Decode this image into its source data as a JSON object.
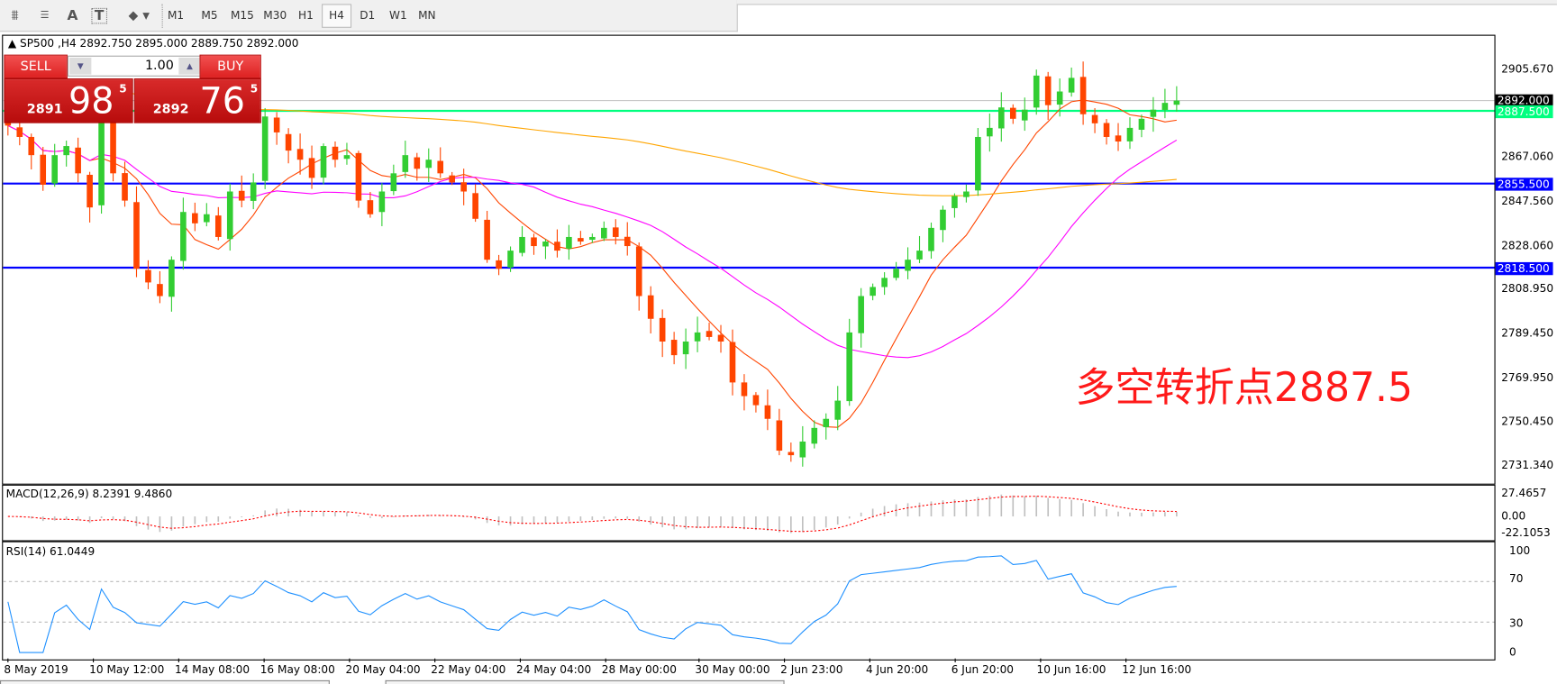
{
  "toolbar": {
    "icons": [
      "elliott-wave-icon",
      "fibonacci-icon",
      "text-icon",
      "text-label-icon",
      "arrows-icon"
    ],
    "text_icon_glyph": "A",
    "label_icon_glyph": "T",
    "timeframes": [
      "M1",
      "M5",
      "M15",
      "M30",
      "H1",
      "H4",
      "D1",
      "W1",
      "MN"
    ],
    "active_timeframe": "H4"
  },
  "chart": {
    "symbol_line": "SP500 ,H4  2892.750 2895.000 2889.750 2892.000",
    "trade_panel": {
      "sell_label": "SELL",
      "buy_label": "BUY",
      "lot_value": "1.00",
      "sell_price_small": "2891",
      "sell_price_big": "98",
      "sell_price_sup": "5",
      "buy_price_small": "2892",
      "buy_price_big": "76",
      "buy_price_sup": "5"
    },
    "annotation": "多空转折点2887.5",
    "annotation_color": "#ff1a1a",
    "price_axis": [
      "2905.670",
      "2867.060",
      "2847.560",
      "2828.060",
      "2808.950",
      "2789.450",
      "2769.950",
      "2750.450",
      "2731.340"
    ],
    "price_axis_values": [
      2905.67,
      2867.06,
      2847.56,
      2828.06,
      2808.95,
      2789.45,
      2769.95,
      2750.45,
      2731.34
    ],
    "levels": [
      {
        "label": "2892.000",
        "value": 2892.0,
        "color": "#c0c0c0",
        "tag_color": "#000000"
      },
      {
        "label": "2887.500",
        "value": 2887.5,
        "color": "#00ff7f",
        "tag_color": "#00ff7f"
      },
      {
        "label": "2855.500",
        "value": 2855.5,
        "color": "#0000ff",
        "tag_color": "#0000ff"
      },
      {
        "label": "2818.500",
        "value": 2818.5,
        "color": "#0000ff",
        "tag_color": "#0000ff"
      }
    ],
    "bull_color": "#32cd32",
    "bear_color": "#ff4500",
    "ma_colors": [
      "#ff4500",
      "#ff00ff",
      "#ffa500"
    ],
    "closes": [
      2881,
      2876,
      2868,
      2855,
      2868,
      2872,
      2860,
      2845,
      2890,
      2860,
      2848,
      2818,
      2812,
      2806,
      2822,
      2843,
      2838,
      2842,
      2832,
      2852,
      2848,
      2856,
      2885,
      2878,
      2870,
      2866,
      2858,
      2872,
      2866,
      2868,
      2848,
      2842,
      2852,
      2860,
      2868,
      2862,
      2866,
      2860,
      2856,
      2852,
      2840,
      2822,
      2818,
      2826,
      2832,
      2828,
      2830,
      2826,
      2832,
      2830,
      2832,
      2836,
      2832,
      2828,
      2806,
      2796,
      2786,
      2780,
      2786,
      2790,
      2788,
      2786,
      2768,
      2762,
      2758,
      2752,
      2738,
      2736,
      2742,
      2748,
      2752,
      2760,
      2790,
      2806,
      2810,
      2814,
      2818,
      2822,
      2826,
      2836,
      2844,
      2850,
      2852,
      2876,
      2880,
      2889,
      2884,
      2888,
      2903,
      2890,
      2896,
      2902,
      2886,
      2882,
      2876,
      2874,
      2880,
      2884,
      2888,
      2891,
      2892
    ]
  },
  "macd": {
    "title": "MACD(12,26,9) 8.2391 9.4860",
    "axis": [
      "27.4657",
      "0.00",
      "-22.1053"
    ],
    "histogram_color": "#c0c0c0",
    "signal_color": "#ff0000"
  },
  "rsi": {
    "title": "RSI(14) 61.0449",
    "axis": [
      "100",
      "70",
      "30",
      "0"
    ],
    "line_color": "#1e90ff"
  },
  "time_axis": [
    "8 May 2019",
    "10 May 12:00",
    "14 May 08:00",
    "16 May 08:00",
    "20 May 04:00",
    "22 May 04:00",
    "24 May 04:00",
    "28 May 00:00",
    "30 May 00:00",
    "2 Jun 23:00",
    "4 Jun 20:00",
    "6 Jun 20:00",
    "10 Jun 16:00",
    "12 Jun 16:00"
  ]
}
